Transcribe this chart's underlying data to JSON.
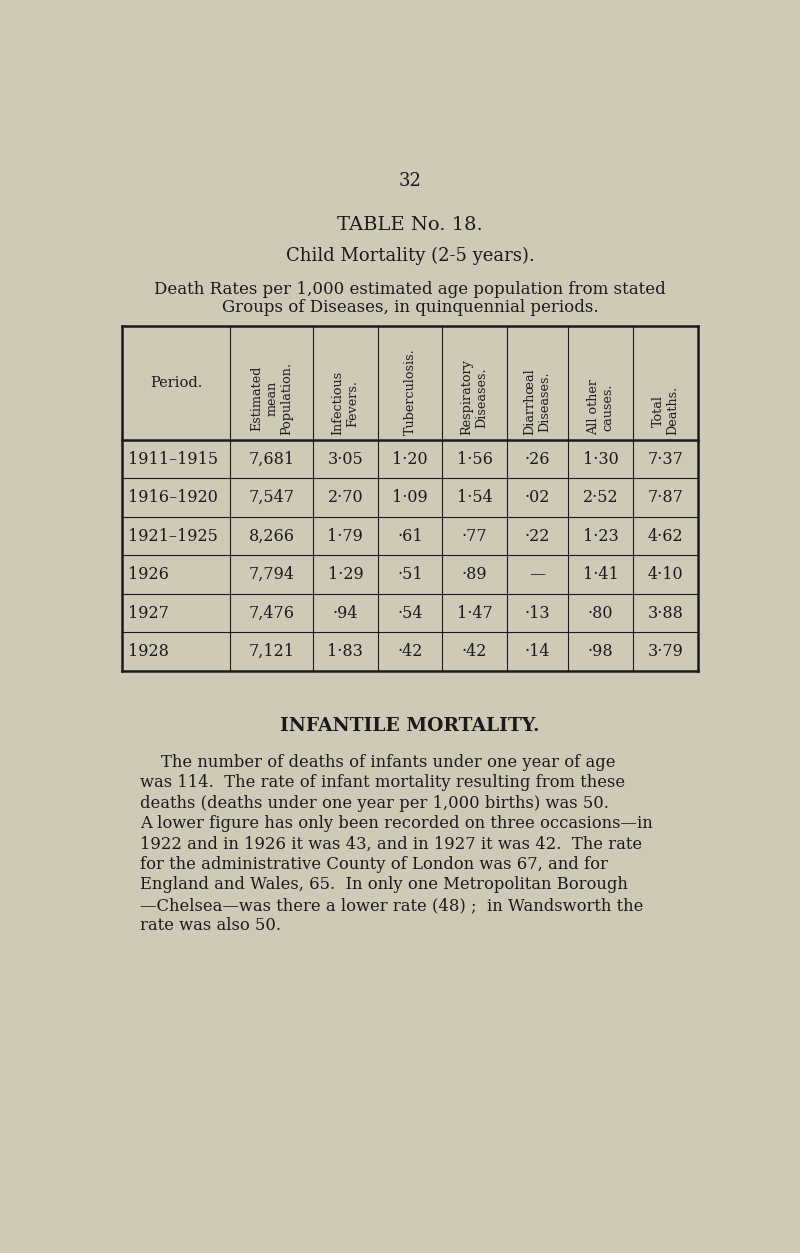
{
  "page_number": "32",
  "title1": "TABLE No. 18.",
  "title2": "Child Mortality (2-5 years).",
  "subtitle_line1": "Death Rates per 1,000 estimated age population from stated",
  "subtitle_line2": "Groups of Diseases, in quinquennial periods.",
  "col_headers": [
    "Period.",
    "Estimated\nmean\nPopulation.",
    "Infectious\nFevers.",
    "Tuberculosis.",
    "Respiratory\nDiseases.",
    "Diarrhœal\nDiseases.",
    "All other\ncauses.",
    "Total\nDeaths."
  ],
  "rows": [
    [
      "1911–1915",
      "7,681",
      "3·05",
      "1·20",
      "1·56",
      "·26",
      "1·30",
      "7·37"
    ],
    [
      "1916–1920",
      "7,547",
      "2·70",
      "1·09",
      "1·54",
      "·02",
      "2·52",
      "7·87"
    ],
    [
      "1921–1925",
      "8,266",
      "1·79",
      "·61",
      "·77",
      "·22",
      "1·23",
      "4·62"
    ],
    [
      "1926",
      "7,794",
      "1·29",
      "·51",
      "·89",
      "—",
      "1·41",
      "4·10"
    ],
    [
      "1927",
      "7,476",
      "·94",
      "·54",
      "1·47",
      "·13",
      "·80",
      "3·88"
    ],
    [
      "1928",
      "7,121",
      "1·83",
      "·42",
      "·42",
      "·14",
      "·98",
      "3·79"
    ]
  ],
  "section_title": "INFANTILE MORTALITY.",
  "body_paragraphs": [
    "    The number of deaths of infants under one year of age was 114.  The rate of infant mortality resulting from these deaths (deaths under one year per 1,000 births) was 50.  A lower figure has only been recorded on three occasions—in 1922 and in 1926 it was 43, and in 1927 it was 42.  The rate for the administrative County of London was 67, and for England and Wales, 65.  In only one Metropolitan Borough —Chelsea—was there a lower rate (48) ;  in Wandsworth the rate was also 50."
  ],
  "bg_color": "#cfc9b8",
  "text_color": "#1a1a1a",
  "line_color": "#1a1a1a"
}
